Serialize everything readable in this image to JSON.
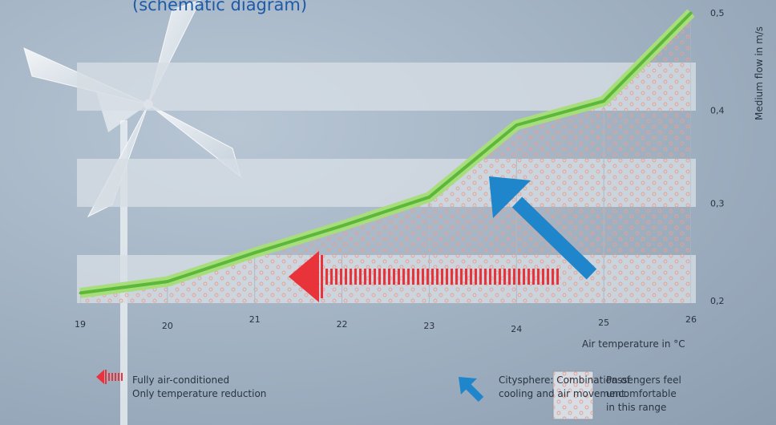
{
  "chart_data": {
    "type": "line",
    "subtitle": "(schematic diagram)",
    "xlabel": "Air temperature in °C",
    "ylabel": "Medium flow in m/s",
    "x_ticks": [
      "19",
      "20",
      "21",
      "22",
      "23",
      "24",
      "25",
      "26"
    ],
    "y_ticks": [
      "0,2",
      "0,3",
      "0,4",
      "0,5"
    ],
    "xlim": [
      19,
      26
    ],
    "ylim": [
      0.2,
      0.5
    ],
    "series": [
      {
        "x": [
          19,
          20,
          21,
          22,
          23,
          24,
          25,
          26
        ],
        "y": [
          0.208,
          0.22,
          0.25,
          0.278,
          0.308,
          0.383,
          0.408,
          0.5
        ]
      }
    ],
    "colors": {
      "line": "#5cb83a",
      "line_glow": "#a8dd7c",
      "full_ac_arrow": "#e8333a",
      "citysphere_arrow": "#1f86cc",
      "text": "#2a3440",
      "subtitle": "#1d5aa8"
    }
  },
  "legend": [
    {
      "icon": "red-striped-arrow-icon",
      "lines": [
        "Fully air-conditioned",
        "Only temperature reduction"
      ]
    },
    {
      "icon": "blue-arrow-icon",
      "lines": [
        "Citysphere: Combination of",
        "cooling and air movement"
      ]
    },
    {
      "icon": "dotted-box-icon",
      "lines": [
        "Passengers feel",
        "uncomfortable",
        "in this range"
      ]
    }
  ]
}
